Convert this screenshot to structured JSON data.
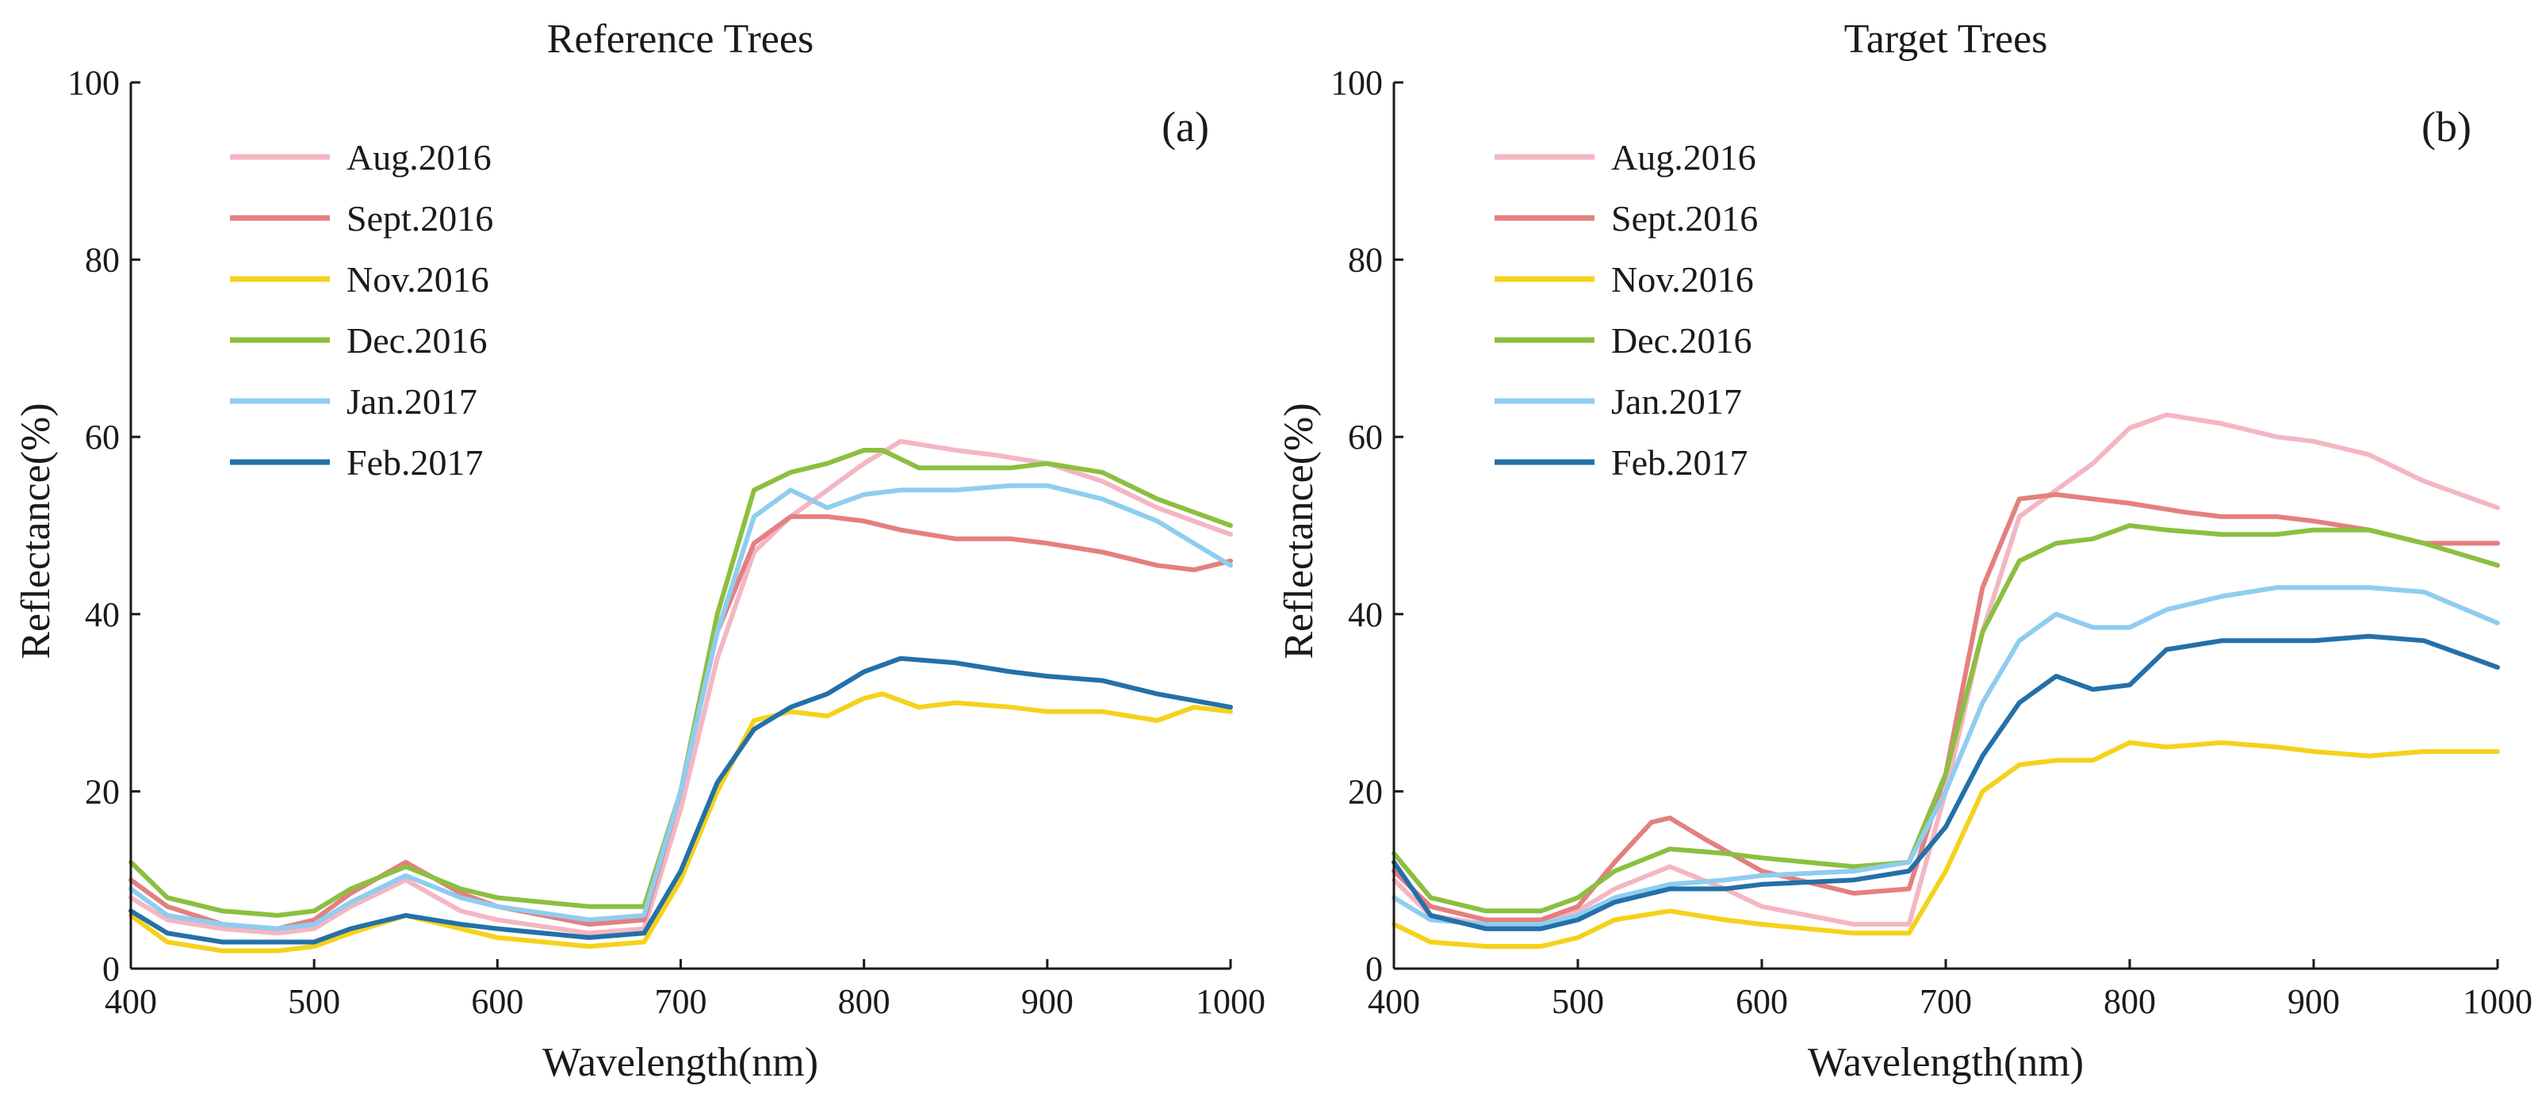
{
  "chart_data": [
    {
      "type": "line",
      "title": "Reference Trees",
      "panel_label": "(a)",
      "xlabel": "Wavelength(nm)",
      "ylabel": "Reflectance(%)",
      "xlim": [
        400,
        1000
      ],
      "ylim": [
        0,
        100
      ],
      "xticks": [
        400,
        500,
        600,
        700,
        800,
        900,
        1000
      ],
      "yticks": [
        0,
        20,
        40,
        60,
        80,
        100
      ],
      "legend_position": "top-left",
      "series": [
        {
          "name": "Aug.2016",
          "color": "#f4b6c2",
          "x": [
            400,
            420,
            450,
            480,
            500,
            520,
            550,
            580,
            600,
            650,
            680,
            700,
            720,
            740,
            760,
            780,
            800,
            820,
            850,
            870,
            900,
            930,
            960,
            1000
          ],
          "y": [
            8,
            5.5,
            4.5,
            4,
            4.5,
            7,
            10,
            6.5,
            5.5,
            4,
            4.5,
            18,
            35,
            47,
            51,
            54,
            57,
            59.5,
            58.5,
            58,
            57,
            55,
            52,
            49
          ]
        },
        {
          "name": "Sept.2016",
          "color": "#e47f7f",
          "x": [
            400,
            420,
            450,
            480,
            500,
            520,
            550,
            580,
            600,
            650,
            680,
            700,
            720,
            740,
            760,
            780,
            800,
            820,
            850,
            880,
            900,
            930,
            960,
            980,
            1000
          ],
          "y": [
            10,
            7,
            5,
            4.5,
            5.5,
            8.5,
            12,
            8.5,
            7,
            5,
            5.5,
            20,
            38,
            48,
            51,
            51,
            50.5,
            49.5,
            48.5,
            48.5,
            48,
            47,
            45.5,
            45,
            46
          ]
        },
        {
          "name": "Nov.2016",
          "color": "#f5d21a",
          "x": [
            400,
            420,
            450,
            480,
            500,
            520,
            550,
            580,
            600,
            650,
            680,
            700,
            720,
            740,
            760,
            780,
            800,
            810,
            830,
            850,
            880,
            900,
            930,
            960,
            980,
            1000
          ],
          "y": [
            6,
            3,
            2,
            2,
            2.5,
            4,
            6,
            4.5,
            3.5,
            2.5,
            3,
            10,
            20,
            28,
            29,
            28.5,
            30.5,
            31,
            29.5,
            30,
            29.5,
            29,
            29,
            28,
            29.5,
            29
          ]
        },
        {
          "name": "Dec.2016",
          "color": "#8cbf3f",
          "x": [
            400,
            420,
            450,
            480,
            500,
            520,
            550,
            580,
            600,
            650,
            680,
            700,
            720,
            740,
            760,
            780,
            800,
            810,
            830,
            850,
            880,
            900,
            930,
            960,
            1000
          ],
          "y": [
            12,
            8,
            6.5,
            6,
            6.5,
            9,
            11.5,
            9,
            8,
            7,
            7,
            20,
            40,
            54,
            56,
            57,
            58.5,
            58.5,
            56.5,
            56.5,
            56.5,
            57,
            56,
            53,
            50
          ]
        },
        {
          "name": "Jan.2017",
          "color": "#8fcdf0",
          "x": [
            400,
            420,
            450,
            480,
            500,
            520,
            550,
            580,
            600,
            650,
            680,
            700,
            720,
            740,
            760,
            780,
            800,
            820,
            850,
            880,
            900,
            930,
            960,
            1000
          ],
          "y": [
            9,
            6,
            5,
            4.5,
            5,
            7.5,
            10.5,
            8,
            7,
            5.5,
            6,
            20,
            38,
            51,
            54,
            52,
            53.5,
            54,
            54,
            54.5,
            54.5,
            53,
            50.5,
            45.5
          ]
        },
        {
          "name": "Feb.2017",
          "color": "#2470a8",
          "x": [
            400,
            420,
            450,
            480,
            500,
            520,
            550,
            580,
            600,
            650,
            680,
            700,
            720,
            740,
            760,
            780,
            800,
            820,
            850,
            880,
            900,
            930,
            960,
            1000
          ],
          "y": [
            6.5,
            4,
            3,
            3,
            3,
            4.5,
            6,
            5,
            4.5,
            3.5,
            4,
            11,
            21,
            27,
            29.5,
            31,
            33.5,
            35,
            34.5,
            33.5,
            33,
            32.5,
            31,
            29.5
          ]
        }
      ]
    },
    {
      "type": "line",
      "title": "Target Trees",
      "panel_label": "(b)",
      "xlabel": "Wavelength(nm)",
      "ylabel": "Reflectance(%)",
      "xlim": [
        400,
        1000
      ],
      "ylim": [
        0,
        100
      ],
      "xticks": [
        400,
        500,
        600,
        700,
        800,
        900,
        1000
      ],
      "yticks": [
        0,
        20,
        40,
        60,
        80,
        100
      ],
      "legend_position": "top-left",
      "series": [
        {
          "name": "Aug.2016",
          "color": "#f4b6c2",
          "x": [
            400,
            420,
            450,
            480,
            500,
            520,
            550,
            580,
            600,
            650,
            680,
            700,
            720,
            740,
            760,
            780,
            800,
            820,
            850,
            880,
            900,
            930,
            960,
            1000
          ],
          "y": [
            10,
            6,
            5,
            5,
            6.5,
            9,
            11.5,
            9,
            7,
            5,
            5,
            20,
            38,
            51,
            54,
            57,
            61,
            62.5,
            61.5,
            60,
            59.5,
            58,
            55,
            52
          ]
        },
        {
          "name": "Sept.2016",
          "color": "#e47f7f",
          "x": [
            400,
            420,
            450,
            480,
            500,
            520,
            540,
            550,
            570,
            600,
            650,
            680,
            700,
            720,
            740,
            760,
            780,
            800,
            830,
            850,
            880,
            900,
            930,
            960,
            1000
          ],
          "y": [
            11,
            7,
            5.5,
            5.5,
            7,
            12,
            16.5,
            17,
            14.5,
            11,
            8.5,
            9,
            22,
            43,
            53,
            53.5,
            53,
            52.5,
            51.5,
            51,
            51,
            50.5,
            49.5,
            48,
            48
          ]
        },
        {
          "name": "Nov.2016",
          "color": "#f5d21a",
          "x": [
            400,
            420,
            450,
            480,
            500,
            520,
            550,
            580,
            600,
            650,
            680,
            700,
            720,
            740,
            760,
            780,
            800,
            820,
            850,
            880,
            900,
            930,
            960,
            1000
          ],
          "y": [
            5,
            3,
            2.5,
            2.5,
            3.5,
            5.5,
            6.5,
            5.5,
            5,
            4,
            4,
            11,
            20,
            23,
            23.5,
            23.5,
            25.5,
            25,
            25.5,
            25,
            24.5,
            24,
            24.5,
            24.5
          ]
        },
        {
          "name": "Dec.2016",
          "color": "#8cbf3f",
          "x": [
            400,
            420,
            450,
            480,
            500,
            520,
            550,
            580,
            600,
            650,
            680,
            700,
            720,
            740,
            760,
            780,
            800,
            820,
            850,
            880,
            900,
            930,
            960,
            1000
          ],
          "y": [
            13,
            8,
            6.5,
            6.5,
            8,
            11,
            13.5,
            13,
            12.5,
            11.5,
            12,
            22,
            38,
            46,
            48,
            48.5,
            50,
            49.5,
            49,
            49,
            49.5,
            49.5,
            48,
            45.5
          ]
        },
        {
          "name": "Jan.2017",
          "color": "#8fcdf0",
          "x": [
            400,
            420,
            450,
            480,
            500,
            520,
            550,
            580,
            600,
            650,
            680,
            700,
            720,
            740,
            760,
            780,
            800,
            820,
            850,
            880,
            900,
            930,
            960,
            1000
          ],
          "y": [
            8,
            5.5,
            5,
            5,
            6,
            8,
            9.5,
            10,
            10.5,
            11,
            12,
            20,
            30,
            37,
            40,
            38.5,
            38.5,
            40.5,
            42,
            43,
            43,
            43,
            42.5,
            39
          ]
        },
        {
          "name": "Feb.2017",
          "color": "#2470a8",
          "x": [
            400,
            420,
            450,
            480,
            500,
            520,
            550,
            580,
            600,
            650,
            680,
            700,
            720,
            740,
            760,
            780,
            800,
            820,
            850,
            880,
            900,
            930,
            960,
            1000
          ],
          "y": [
            12,
            6,
            4.5,
            4.5,
            5.5,
            7.5,
            9,
            9,
            9.5,
            10,
            11,
            16,
            24,
            30,
            33,
            31.5,
            32,
            36,
            37,
            37,
            37,
            37.5,
            37,
            34
          ]
        }
      ]
    }
  ]
}
